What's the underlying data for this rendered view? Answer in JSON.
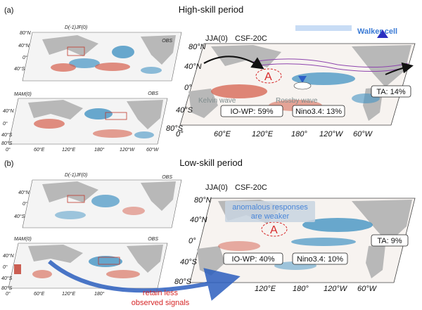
{
  "panels": {
    "a": {
      "letter": "(a)",
      "title": "High-skill period"
    },
    "b": {
      "letter": "(b)",
      "title": "Low-skill period"
    }
  },
  "small_maps": {
    "djf": "D(-1)JF(0)",
    "mam": "MAM(0)",
    "obs": "OBS",
    "lat_ticks": [
      "80°N",
      "40°N",
      "0°",
      "40°S",
      "80°S"
    ],
    "lon_ticks": [
      "0°",
      "60°E",
      "120°E",
      "180°",
      "120°W",
      "60°W"
    ]
  },
  "big_maps": {
    "season": "JJA(0)",
    "model": "CSF-20C",
    "lat_ticks": [
      "80°N",
      "40°N",
      "0°",
      "40°S",
      "80°S"
    ],
    "lon_ticks": [
      "0°",
      "60°E",
      "120°E",
      "180°",
      "120°W",
      "60°W"
    ]
  },
  "high_skill": {
    "walker_cell": "Walker cell",
    "kelvin_wave": "Kelvin wave",
    "rossby_wave": "Rossby wave",
    "anomaly_marker": "A",
    "io_wp": "IO-WP: 59%",
    "nino34": "Nino3.4: 13%",
    "ta": "TA: 14%"
  },
  "low_skill": {
    "note_line1": "anomalous responses",
    "note_line2": "are weaker",
    "anomaly_marker": "A",
    "io_wp": "IO-WP: 40%",
    "nino34": "Nino3.4: 10%",
    "ta": "TA: 9%",
    "retain_line1": "retain less",
    "retain_line2": "observed signals"
  },
  "colors": {
    "warm": "#d6604d",
    "cool": "#4393c3",
    "land": "#b8b8b8",
    "walker_blue": "#3a7ad5",
    "note_text": "#4a86d8",
    "retain_text": "#d62728"
  }
}
